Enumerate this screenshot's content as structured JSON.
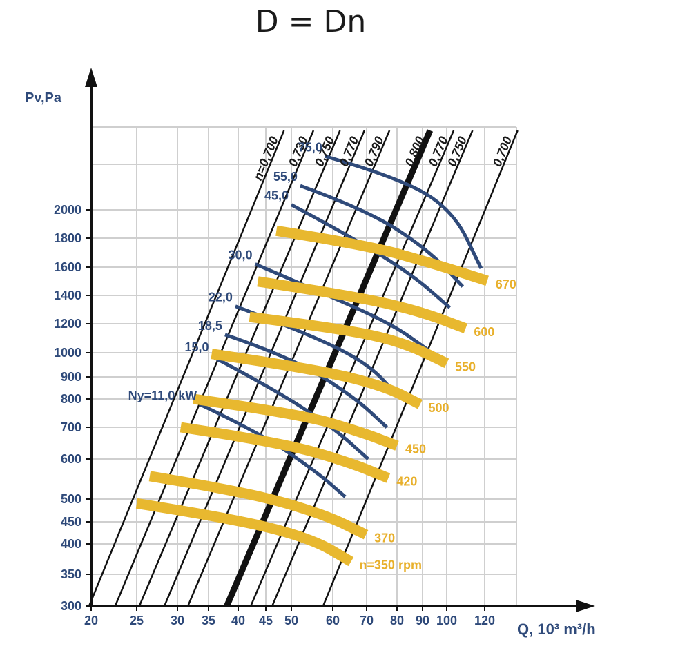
{
  "chart_data": {
    "type": "line",
    "title": "D = Dn",
    "xlabel": "Q, 10³ m³/h",
    "ylabel": "Pv,Pa",
    "x_scale": "log",
    "y_scale": "log",
    "xlim": [
      20,
      140
    ],
    "ylim": [
      300,
      3000
    ],
    "grid": true,
    "x_ticks": [
      20,
      25,
      30,
      35,
      40,
      45,
      50,
      60,
      70,
      80,
      90,
      100,
      120
    ],
    "y_ticks": [
      300,
      350,
      400,
      450,
      500,
      600,
      700,
      800,
      900,
      1000,
      1200,
      1400,
      1600,
      1800,
      2000
    ],
    "x_tick_labels": [
      "20",
      "25",
      "30",
      "35",
      "40",
      "45",
      "50",
      "60",
      "70",
      "80",
      "90",
      "100",
      "120"
    ],
    "y_tick_labels": [
      "300",
      "350",
      "400",
      "450",
      "500",
      "600",
      "700",
      "800",
      "900",
      "1000",
      "1200",
      "1400",
      "1600",
      "1800",
      "2000"
    ],
    "efficiency_lines": {
      "labels": [
        "n=0,700",
        "0,730",
        "0,750",
        "0,770",
        "0,790",
        "0,800",
        "0,770",
        "0,750",
        "0,700"
      ],
      "thick_index": 5,
      "x_at_300Pa": [
        19.8,
        22.5,
        25.3,
        28.3,
        31.6,
        38,
        42.2,
        46.2,
        57.5
      ],
      "x_at_top": [
        48.5,
        55.1,
        62,
        69.3,
        77.4,
        93,
        103.4,
        113.2,
        140.8
      ],
      "y_top": 2950
    },
    "speed_curves": {
      "labels": [
        "n=350 rpm",
        "370",
        "420",
        "450",
        "500",
        "550",
        "600",
        "670"
      ],
      "points": [
        [
          [
            25.0,
            490
          ],
          [
            40,
            455
          ],
          [
            55,
            410
          ],
          [
            65.2,
            370
          ]
        ],
        [
          [
            26.5,
            555
          ],
          [
            42,
            515
          ],
          [
            58,
            465
          ],
          [
            69.8,
            420
          ]
        ],
        [
          [
            30.5,
            700
          ],
          [
            48,
            650
          ],
          [
            65,
            590
          ],
          [
            77,
            550
          ]
        ],
        [
          [
            32.5,
            800
          ],
          [
            52,
            745
          ],
          [
            68,
            685
          ],
          [
            80,
            640
          ]
        ],
        [
          [
            35.5,
            995
          ],
          [
            56,
            930
          ],
          [
            76,
            855
          ],
          [
            89,
            780
          ]
        ],
        [
          [
            42,
            1245
          ],
          [
            62,
            1165
          ],
          [
            82,
            1070
          ],
          [
            100,
            955
          ]
        ],
        [
          [
            43.5,
            1495
          ],
          [
            65,
            1400
          ],
          [
            88,
            1290
          ],
          [
            109.5,
            1165
          ]
        ],
        [
          [
            47,
            1850
          ],
          [
            70,
            1750
          ],
          [
            95,
            1620
          ],
          [
            121.5,
            1500
          ]
        ]
      ]
    },
    "power_curves": {
      "labels": [
        "Ny=11,0 kW",
        "15,0",
        "18,5",
        "22,0",
        "30,0",
        "45,0",
        "55,0",
        "75,0"
      ],
      "points": [
        [
          [
            33.5,
            780
          ],
          [
            44,
            680
          ],
          [
            56,
            565
          ],
          [
            63.5,
            505
          ]
        ],
        [
          [
            35.5,
            985
          ],
          [
            46,
            850
          ],
          [
            60,
            700
          ],
          [
            70.5,
            600
          ]
        ],
        [
          [
            37.7,
            1120
          ],
          [
            50,
            980
          ],
          [
            66,
            810
          ],
          [
            76.5,
            700
          ]
        ],
        [
          [
            39.5,
            1320
          ],
          [
            52,
            1150
          ],
          [
            70,
            960
          ],
          [
            80.5,
            810
          ]
        ],
        [
          [
            43,
            1620
          ],
          [
            57,
            1420
          ],
          [
            78,
            1200
          ],
          [
            92,
            1020
          ]
        ],
        [
          [
            50,
            2050
          ],
          [
            66,
            1800
          ],
          [
            86,
            1540
          ],
          [
            101.5,
            1310
          ]
        ],
        [
          [
            52,
            2250
          ],
          [
            70,
            2000
          ],
          [
            92,
            1720
          ],
          [
            108,
            1460
          ]
        ],
        [
          [
            58,
            2600
          ],
          [
            80,
            2350
          ],
          [
            103,
            2000
          ],
          [
            118,
            1590
          ]
        ]
      ]
    },
    "colors": {
      "axis": "#111111",
      "grid": "#cfcfcf",
      "power": "#2f4a7a",
      "speed": "#e8b82f",
      "efficiency": "#111111"
    }
  }
}
